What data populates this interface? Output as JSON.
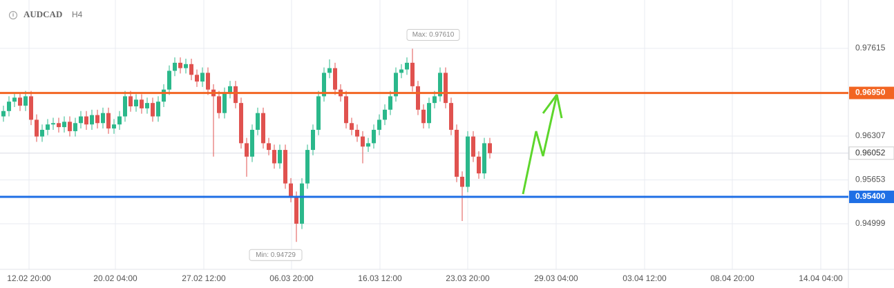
{
  "chart_data": {
    "type": "candlestick",
    "title": "AUDCAD",
    "subtitle": "H4",
    "open": [
      0.966,
      0.9668,
      0.9682,
      0.9688,
      0.9676,
      0.969,
      0.9655,
      0.963,
      0.964,
      0.9648,
      0.965,
      0.9644,
      0.9652,
      0.9638,
      0.965,
      0.966,
      0.9648,
      0.9662,
      0.965,
      0.9665,
      0.9642,
      0.9648,
      0.966,
      0.969,
      0.9675,
      0.9685,
      0.9672,
      0.968,
      0.966,
      0.9682,
      0.97,
      0.9728,
      0.974,
      0.9732,
      0.9738,
      0.9722,
      0.9712,
      0.9725,
      0.97,
      0.969,
      0.9665,
      0.9695,
      0.9705,
      0.968,
      0.962,
      0.96,
      0.964,
      0.9665,
      0.962,
      0.961,
      0.959,
      0.961,
      0.956,
      0.954,
      0.95,
      0.956,
      0.961,
      0.964,
      0.969,
      0.9725,
      0.9732,
      0.97,
      0.969,
      0.965,
      0.964,
      0.963,
      0.9615,
      0.962,
      0.964,
      0.9655,
      0.967,
      0.969,
      0.9725,
      0.973,
      0.974,
      0.9705,
      0.967,
      0.965,
      0.968,
      0.969,
      0.9725,
      0.968,
      0.964,
      0.957,
      0.9555,
      0.963,
      0.96,
      0.9575,
      0.962
    ],
    "high": [
      0.9676,
      0.969,
      0.9696,
      0.9696,
      0.9698,
      0.9698,
      0.9663,
      0.9648,
      0.9656,
      0.9658,
      0.9658,
      0.966,
      0.966,
      0.9658,
      0.9668,
      0.9668,
      0.967,
      0.967,
      0.9673,
      0.9673,
      0.9656,
      0.9668,
      0.9698,
      0.9698,
      0.9693,
      0.9693,
      0.9688,
      0.9688,
      0.969,
      0.9708,
      0.9736,
      0.9748,
      0.9748,
      0.9746,
      0.9746,
      0.973,
      0.9733,
      0.9733,
      0.9708,
      0.9698,
      0.9703,
      0.9713,
      0.9713,
      0.9688,
      0.9628,
      0.9648,
      0.9673,
      0.9673,
      0.9628,
      0.9618,
      0.9618,
      0.9618,
      0.9568,
      0.9548,
      0.9568,
      0.9618,
      0.9648,
      0.9698,
      0.9733,
      0.9745,
      0.974,
      0.9708,
      0.9698,
      0.9658,
      0.9648,
      0.9638,
      0.9628,
      0.9648,
      0.9663,
      0.9678,
      0.9698,
      0.9733,
      0.9738,
      0.9748,
      0.9761,
      0.9713,
      0.9678,
      0.9688,
      0.9698,
      0.9733,
      0.9733,
      0.9688,
      0.9648,
      0.9578,
      0.9638,
      0.9638,
      0.9608,
      0.9628,
      0.9628
    ],
    "low": [
      0.9652,
      0.966,
      0.9674,
      0.9668,
      0.9668,
      0.9647,
      0.9622,
      0.9622,
      0.9632,
      0.964,
      0.9636,
      0.9636,
      0.963,
      0.963,
      0.9642,
      0.964,
      0.964,
      0.9642,
      0.9642,
      0.9634,
      0.9634,
      0.964,
      0.9652,
      0.9667,
      0.9667,
      0.9664,
      0.9664,
      0.9652,
      0.9652,
      0.9674,
      0.9692,
      0.972,
      0.9724,
      0.9724,
      0.9714,
      0.9704,
      0.9704,
      0.9692,
      0.96,
      0.9657,
      0.9657,
      0.9687,
      0.9672,
      0.9612,
      0.957,
      0.9592,
      0.9632,
      0.9612,
      0.9602,
      0.9582,
      0.9582,
      0.9552,
      0.9532,
      0.94729,
      0.9492,
      0.9552,
      0.9602,
      0.9632,
      0.9682,
      0.9717,
      0.9692,
      0.9682,
      0.9642,
      0.9632,
      0.9622,
      0.959,
      0.9607,
      0.9612,
      0.9632,
      0.9647,
      0.9662,
      0.9682,
      0.9717,
      0.9722,
      0.9697,
      0.9662,
      0.9642,
      0.9642,
      0.9672,
      0.9682,
      0.9672,
      0.9632,
      0.9562,
      0.9504,
      0.9547,
      0.9592,
      0.9567,
      0.9567,
      0.95972
    ],
    "close": [
      0.9668,
      0.9682,
      0.9688,
      0.9676,
      0.969,
      0.9655,
      0.963,
      0.964,
      0.9648,
      0.965,
      0.9644,
      0.9652,
      0.9638,
      0.965,
      0.966,
      0.9648,
      0.9662,
      0.965,
      0.9665,
      0.9642,
      0.9648,
      0.966,
      0.969,
      0.9675,
      0.9685,
      0.9672,
      0.968,
      0.966,
      0.9682,
      0.97,
      0.9728,
      0.974,
      0.9732,
      0.9738,
      0.9722,
      0.9712,
      0.9725,
      0.97,
      0.969,
      0.9665,
      0.9695,
      0.9705,
      0.968,
      0.962,
      0.96,
      0.964,
      0.9665,
      0.962,
      0.961,
      0.959,
      0.961,
      0.956,
      0.954,
      0.95,
      0.956,
      0.961,
      0.964,
      0.969,
      0.9725,
      0.9732,
      0.97,
      0.969,
      0.965,
      0.964,
      0.963,
      0.9615,
      0.962,
      0.964,
      0.9655,
      0.967,
      0.969,
      0.9725,
      0.973,
      0.974,
      0.9705,
      0.967,
      0.965,
      0.968,
      0.969,
      0.9725,
      0.968,
      0.964,
      0.957,
      0.9555,
      0.963,
      0.96,
      0.9575,
      0.962,
      0.96052
    ],
    "up_color": "#2bb88b",
    "down_color": "#e0524f",
    "xlim": [
      -0.625,
      152.875
    ],
    "xticks": [
      {
        "value": 4.625,
        "label": "12.02 20:00"
      },
      {
        "value": 20.25,
        "label": "20.02 04:00"
      },
      {
        "value": 36.25,
        "label": "27.02 12:00"
      },
      {
        "value": 52.125,
        "label": "06.03 20:00"
      },
      {
        "value": 68.125,
        "label": "16.03 12:00"
      },
      {
        "value": 84,
        "label": "23.03 20:00"
      },
      {
        "value": 100,
        "label": "29.03 04:00"
      },
      {
        "value": 116,
        "label": "03.04 12:00"
      },
      {
        "value": 131.875,
        "label": "08.04 20:00"
      },
      {
        "value": 147.875,
        "label": "14.04 04:00"
      }
    ],
    "ylim": [
      0.94319,
      0.98336
    ],
    "yticks": [
      0.97615,
      0.96307,
      0.95653,
      0.94999
    ],
    "grid": true,
    "levels": [
      {
        "value": 0.9695,
        "label": "0.96950",
        "color": "#f26522"
      },
      {
        "value": 0.954,
        "label": "0.95400",
        "color": "#1f6fe5"
      }
    ],
    "price_line": 0.96052,
    "annotations": [
      "Max: 0.97610",
      "Min: 0.94729"
    ]
  }
}
